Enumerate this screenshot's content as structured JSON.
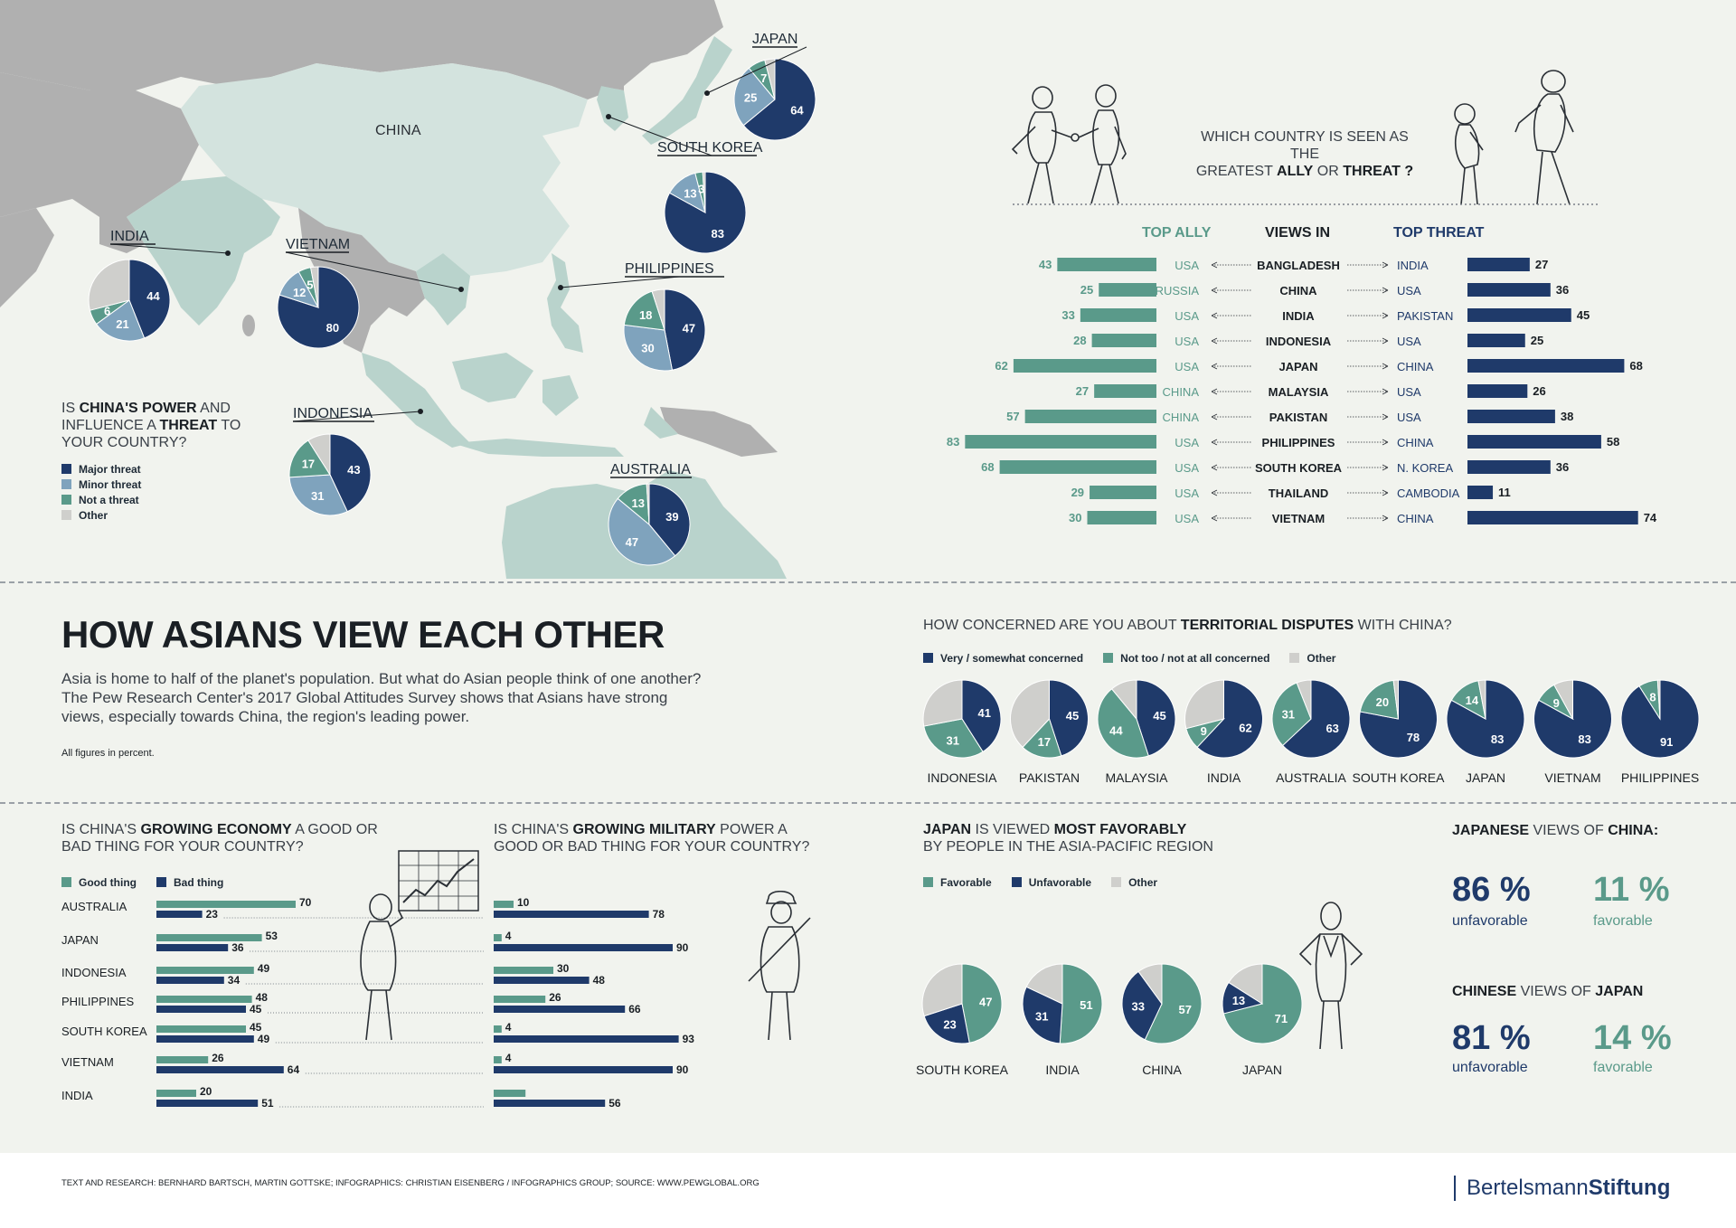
{
  "colors": {
    "navy": "#1f3a6a",
    "light_blue": "#7fa3bd",
    "teal": "#5a9a8a",
    "gray": "#cfcfcc",
    "map_land": "#b0b0b0",
    "map_asia": "#b9d3cc",
    "map_china": "#d3e3de"
  },
  "map": {
    "labels": {
      "china": "CHINA"
    },
    "question": {
      "pre": "IS ",
      "bold1": "CHINA'S POWER",
      "mid": " AND INFLUENCE A ",
      "bold2": "THREAT",
      "post": " TO YOUR COUNTRY?"
    },
    "legend": [
      "Major threat",
      "Minor threat",
      "Not a threat",
      "Other"
    ]
  },
  "header_question": {
    "pre": "WHICH COUNTRY IS SEEN AS THE",
    "mid1": "GREATEST ",
    "b1": "ALLY",
    "mid2": " OR ",
    "b2": "THREAT ?"
  },
  "ally_table": {
    "col_ally": "TOP ALLY",
    "col_views": "VIEWS IN",
    "col_threat": "TOP THREAT"
  },
  "disputes": {
    "question": {
      "pre": "HOW CONCERNED ARE YOU ABOUT ",
      "bold": "TERRITORIAL DISPUTES",
      "post": " WITH CHINA?"
    },
    "legend": [
      "Very / somewhat concerned",
      "Not too / not at all concerned",
      "Other"
    ]
  },
  "title": "HOW ASIANS VIEW EACH OTHER",
  "intro": "Asia is home to half of the planet's population. But what do Asian people think of one another? The Pew Research Center's 2017 Global Attitudes Survey shows that Asians have strong views, especially towards China, the region's leading power.",
  "note": "All figures in percent.",
  "economy": {
    "question": {
      "pre": "IS CHINA'S ",
      "bold": "GROWING ECONOMY",
      "post": " A GOOD OR BAD THING FOR YOUR COUNTRY?"
    },
    "legend": [
      "Good thing",
      "Bad thing"
    ]
  },
  "military": {
    "question": {
      "pre": "IS CHINA'S ",
      "bold": "GROWING MILITARY",
      "post": " POWER A GOOD OR BAD THING FOR YOUR COUNTRY?"
    }
  },
  "favor": {
    "question": {
      "b1": "JAPAN",
      "t1": " IS VIEWED ",
      "b2": "MOST FAVORABLY",
      "t2": "BY PEOPLE IN THE ASIA-PACIFIC REGION"
    },
    "legend": [
      "Favorable",
      "Unfavorable",
      "Other"
    ]
  },
  "jp_cn": {
    "jp_head": {
      "b1": "JAPANESE",
      "t": " VIEWS OF ",
      "b2": "CHINA:"
    },
    "jp_unfav": "86 %",
    "jp_unfav_label": "unfavorable",
    "jp_fav": "11 %",
    "jp_fav_label": "favorable",
    "cn_head": {
      "b1": "CHINESE",
      "t": " VIEWS OF ",
      "b2": "JAPAN"
    },
    "cn_unfav": "81 %",
    "cn_unfav_label": "unfavorable",
    "cn_fav": "14 %",
    "cn_fav_label": "favorable"
  },
  "footer": "TEXT AND RESEARCH: BERNHARD BARTSCH, MARTIN GOTTSKE; INFOGRAPHICS: CHRISTIAN EISENBERG / INFOGRAPHICS GROUP; SOURCE: WWW.PEWGLOBAL.ORG",
  "brand": {
    "a": "Bertelsmann",
    "b": "Stiftung"
  },
  "chart_data": [
    {
      "type": "pie",
      "title": "IS CHINA'S POWER AND INFLUENCE A THREAT TO YOUR COUNTRY?",
      "categories": [
        "Major threat",
        "Minor threat",
        "Not a threat",
        "Other"
      ],
      "series": [
        {
          "name": "JAPAN",
          "values": [
            64,
            25,
            7,
            4
          ],
          "labels": [
            "64",
            "25",
            "7",
            ""
          ]
        },
        {
          "name": "SOUTH KOREA",
          "values": [
            83,
            13,
            3,
            1
          ],
          "labels": [
            "83",
            "13",
            "3",
            ""
          ]
        },
        {
          "name": "INDIA",
          "values": [
            44,
            21,
            6,
            29
          ],
          "labels": [
            "44",
            "21",
            "6",
            ""
          ]
        },
        {
          "name": "VIETNAM",
          "values": [
            80,
            12,
            5,
            3
          ],
          "labels": [
            "80",
            "12",
            "5",
            ""
          ]
        },
        {
          "name": "PHILIPPINES",
          "values": [
            47,
            30,
            18,
            5
          ],
          "labels": [
            "47",
            "30",
            "18",
            ""
          ]
        },
        {
          "name": "INDONESIA",
          "values": [
            43,
            31,
            17,
            9
          ],
          "labels": [
            "43",
            "31",
            "17",
            ""
          ]
        },
        {
          "name": "AUSTRALIA",
          "values": [
            39,
            47,
            13,
            1
          ],
          "labels": [
            "39",
            "47",
            "13",
            ""
          ]
        }
      ]
    },
    {
      "type": "bar",
      "title": "WHICH COUNTRY IS SEEN AS THE GREATEST ALLY OR THREAT ?",
      "rows": [
        {
          "views_in": "BANGLADESH",
          "ally": "USA",
          "ally_value": 43,
          "threat": "INDIA",
          "threat_value": 27
        },
        {
          "views_in": "CHINA",
          "ally": "RUSSIA",
          "ally_value": 25,
          "threat": "USA",
          "threat_value": 36
        },
        {
          "views_in": "INDIA",
          "ally": "USA",
          "ally_value": 33,
          "threat": "PAKISTAN",
          "threat_value": 45
        },
        {
          "views_in": "INDONESIA",
          "ally": "USA",
          "ally_value": 28,
          "threat": "USA",
          "threat_value": 25
        },
        {
          "views_in": "JAPAN",
          "ally": "USA",
          "ally_value": 62,
          "threat": "CHINA",
          "threat_value": 68
        },
        {
          "views_in": "MALAYSIA",
          "ally": "CHINA",
          "ally_value": 27,
          "threat": "USA",
          "threat_value": 26
        },
        {
          "views_in": "PAKISTAN",
          "ally": "CHINA",
          "ally_value": 57,
          "threat": "USA",
          "threat_value": 38
        },
        {
          "views_in": "PHILIPPINES",
          "ally": "USA",
          "ally_value": 83,
          "threat": "CHINA",
          "threat_value": 58
        },
        {
          "views_in": "SOUTH KOREA",
          "ally": "USA",
          "ally_value": 68,
          "threat": "N. KOREA",
          "threat_value": 36
        },
        {
          "views_in": "THAILAND",
          "ally": "USA",
          "ally_value": 29,
          "threat": "CAMBODIA",
          "threat_value": 11
        },
        {
          "views_in": "VIETNAM",
          "ally": "USA",
          "ally_value": 30,
          "threat": "CHINA",
          "threat_value": 74
        }
      ]
    },
    {
      "type": "pie",
      "title": "HOW CONCERNED ARE YOU ABOUT TERRITORIAL DISPUTES WITH CHINA?",
      "categories": [
        "Very / somewhat concerned",
        "Not too / not at all concerned",
        "Other"
      ],
      "series": [
        {
          "name": "INDONESIA",
          "values": [
            41,
            31,
            28
          ],
          "labels": [
            "41",
            "31",
            ""
          ]
        },
        {
          "name": "PAKISTAN",
          "values": [
            45,
            17,
            38
          ],
          "labels": [
            "45",
            "17",
            ""
          ]
        },
        {
          "name": "MALAYSIA",
          "values": [
            45,
            44,
            11
          ],
          "labels": [
            "45",
            "44",
            ""
          ]
        },
        {
          "name": "INDIA",
          "values": [
            62,
            9,
            29
          ],
          "labels": [
            "62",
            "9",
            ""
          ]
        },
        {
          "name": "AUSTRALIA",
          "values": [
            63,
            31,
            6
          ],
          "labels": [
            "63",
            "31",
            ""
          ]
        },
        {
          "name": "SOUTH KOREA",
          "values": [
            78,
            20,
            2
          ],
          "labels": [
            "78",
            "20",
            ""
          ]
        },
        {
          "name": "JAPAN",
          "values": [
            83,
            14,
            3
          ],
          "labels": [
            "83",
            "14",
            ""
          ]
        },
        {
          "name": "VIETNAM",
          "values": [
            83,
            9,
            8
          ],
          "labels": [
            "83",
            "9",
            ""
          ]
        },
        {
          "name": "PHILIPPINES",
          "values": [
            91,
            8,
            1
          ],
          "labels": [
            "91",
            "8",
            ""
          ]
        }
      ]
    },
    {
      "type": "bar",
      "title": "IS CHINA'S GROWING ECONOMY A GOOD OR BAD THING FOR YOUR COUNTRY?",
      "categories": [
        "AUSTRALIA",
        "JAPAN",
        "INDONESIA",
        "PHILIPPINES",
        "SOUTH KOREA",
        "VIETNAM",
        "INDIA"
      ],
      "series": [
        {
          "name": "Good thing",
          "values": [
            70,
            53,
            49,
            48,
            45,
            26,
            20
          ]
        },
        {
          "name": "Bad thing",
          "values": [
            23,
            36,
            34,
            45,
            49,
            64,
            51
          ]
        }
      ]
    },
    {
      "type": "bar",
      "title": "IS CHINA'S GROWING MILITARY POWER A GOOD OR BAD THING FOR YOUR COUNTRY?",
      "categories": [
        "AUSTRALIA",
        "JAPAN",
        "INDONESIA",
        "PHILIPPINES",
        "SOUTH KOREA",
        "VIETNAM",
        "INDIA"
      ],
      "series": [
        {
          "name": "Good thing",
          "values": [
            10,
            4,
            30,
            26,
            4,
            4,
            16
          ],
          "labels": [
            "10",
            "4",
            "30",
            "26",
            "4",
            "4",
            ""
          ]
        },
        {
          "name": "Bad thing",
          "values": [
            78,
            90,
            48,
            66,
            93,
            90,
            56
          ]
        }
      ]
    },
    {
      "type": "pie",
      "title": "JAPAN IS VIEWED MOST FAVORABLY BY PEOPLE IN THE ASIA-PACIFIC REGION",
      "categories": [
        "Favorable",
        "Unfavorable",
        "Other"
      ],
      "series": [
        {
          "name": "SOUTH KOREA",
          "values": [
            47,
            23,
            30
          ],
          "labels": [
            "47",
            "23",
            ""
          ]
        },
        {
          "name": "INDIA",
          "values": [
            51,
            31,
            18
          ],
          "labels": [
            "51",
            "31",
            ""
          ]
        },
        {
          "name": "CHINA",
          "values": [
            57,
            33,
            10
          ],
          "labels": [
            "57",
            "33",
            ""
          ]
        },
        {
          "name": "JAPAN",
          "values": [
            71,
            13,
            16
          ],
          "labels": [
            "71",
            "13",
            ""
          ]
        }
      ]
    }
  ]
}
